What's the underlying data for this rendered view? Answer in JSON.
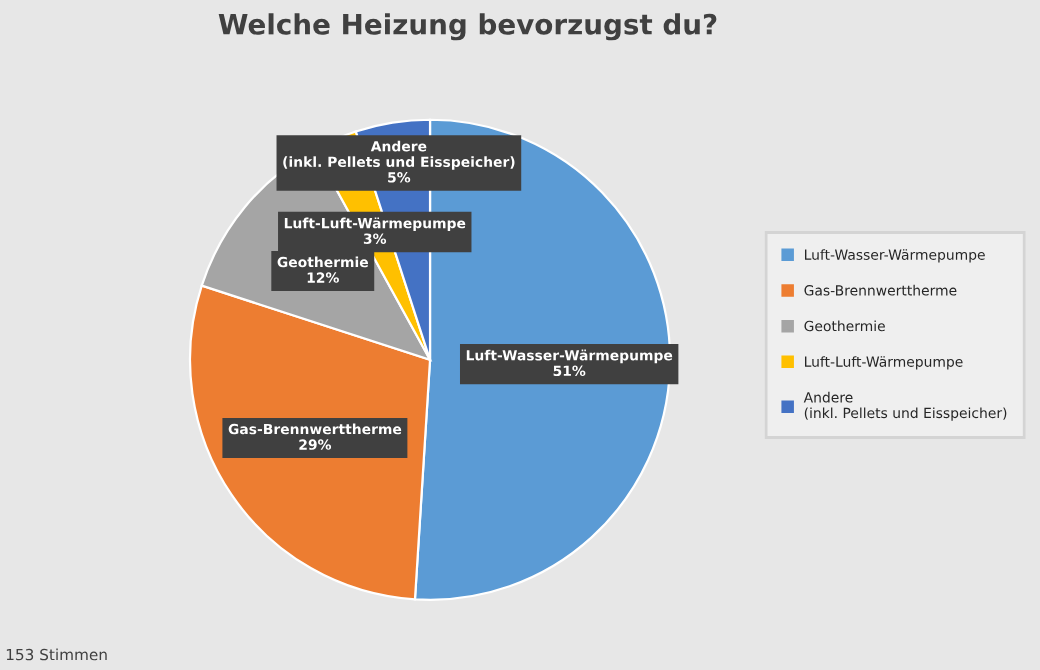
{
  "chart_data": {
    "type": "pie",
    "title": "Welche Heizung bevorzugst du?",
    "categories": [
      "Luft-Wasser-Wärmepumpe",
      "Gas-Brennwerttherme",
      "Geothermie",
      "Luft-Luft-Wärmepumpe",
      "Andere\n(inkl. Pellets und Eisspeicher)"
    ],
    "values": [
      51,
      29,
      12,
      3,
      5
    ],
    "colors": [
      "#5b9bd5",
      "#ed7d31",
      "#a5a5a5",
      "#ffc000",
      "#4472c4"
    ],
    "value_labels": [
      "51%",
      "29%",
      "12%",
      "3%",
      "5%"
    ],
    "legend": "right",
    "annotations": [
      "153 Stimmen"
    ]
  }
}
